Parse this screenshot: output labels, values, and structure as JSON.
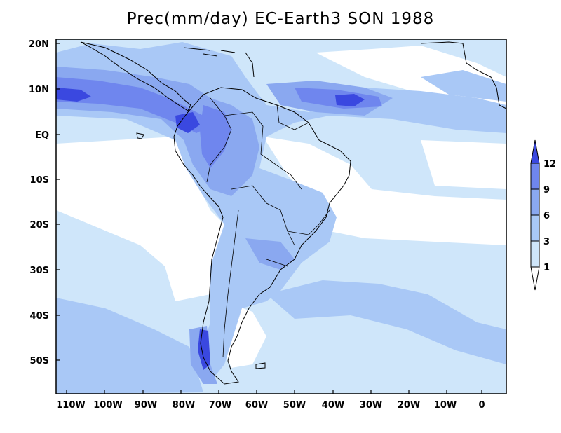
{
  "title": "Prec(mm/day) EC-Earth3 SON 1988",
  "colors": {
    "c1": "#cfe6fa",
    "c3": "#a9c8f6",
    "c6": "#8aa8f0",
    "c9": "#6f86ee",
    "c12": "#3a48e0",
    "coast": "#000000"
  },
  "y_axis": {
    "ticks": [
      "20N",
      "10N",
      "EQ",
      "10S",
      "20S",
      "30S",
      "40S",
      "50S"
    ]
  },
  "x_axis": {
    "ticks": [
      "110W",
      "100W",
      "90W",
      "80W",
      "70W",
      "60W",
      "50W",
      "40W",
      "30W",
      "20W",
      "10W",
      "0"
    ]
  },
  "colorbar": {
    "labels": [
      "12",
      "9",
      "6",
      "3",
      "1"
    ]
  }
}
